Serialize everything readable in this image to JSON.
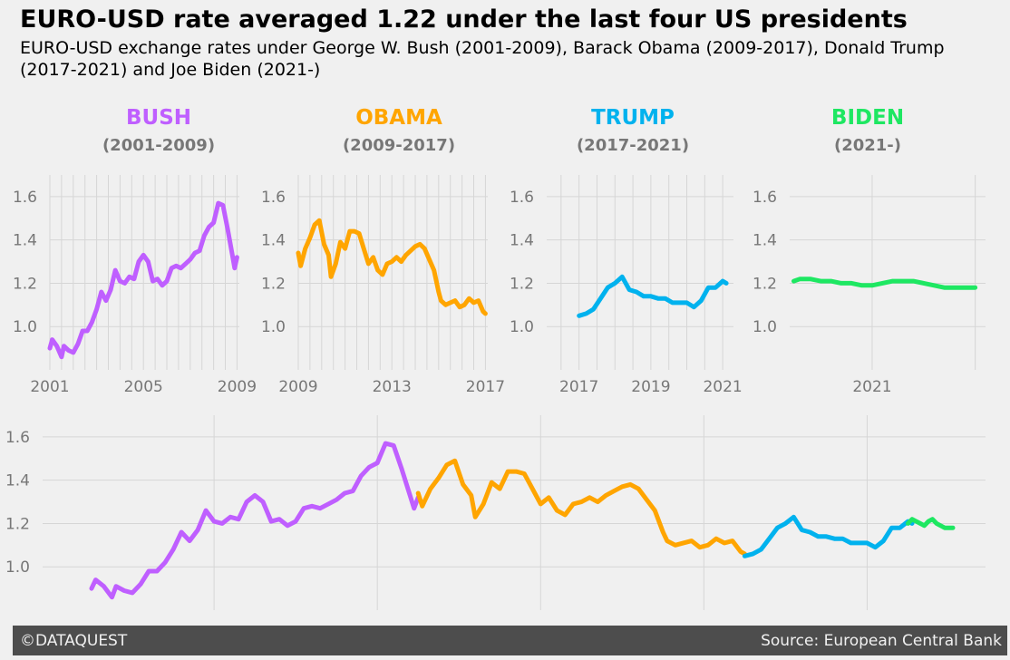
{
  "title": "EURO-USD rate averaged 1.22 under the last four US presidents",
  "subtitle": "EURO-USD exchange rates under George W. Bush (2001-2009), Barack Obama (2009-2017), Donald Trump (2017-2021) and Joe Biden (2021-)",
  "footer": {
    "left": "©DATAQUEST",
    "right": "Source: European Central Bank"
  },
  "colors": {
    "background": "#f0f0f0",
    "grid": "#d6d6d6",
    "tick_text": "#777777",
    "footer_bg": "#4d4d4d",
    "bush": "#bf5fff",
    "obama": "#ffa500",
    "trump": "#00b2ee",
    "biden": "#1ee762"
  },
  "chart_data": [
    {
      "type": "line",
      "title": "BUSH",
      "subtitle": "(2001-2009)",
      "color": "#bf5fff",
      "xlim": [
        2001,
        2009.1
      ],
      "ylim": [
        0.8,
        1.7
      ],
      "xticks": [
        2001,
        2005,
        2009
      ],
      "xtick_labels": [
        "2001",
        "2005",
        "2009"
      ],
      "yticks": [
        1.0,
        1.2,
        1.4,
        1.6
      ],
      "ytick_labels": [
        "1.0",
        "1.2",
        "1.4",
        "1.6"
      ],
      "grid": true,
      "x": [
        2001.0,
        2001.1,
        2001.3,
        2001.5,
        2001.6,
        2001.8,
        2002.0,
        2002.2,
        2002.4,
        2002.6,
        2002.8,
        2003.0,
        2003.2,
        2003.4,
        2003.6,
        2003.8,
        2004.0,
        2004.2,
        2004.4,
        2004.6,
        2004.8,
        2005.0,
        2005.2,
        2005.4,
        2005.6,
        2005.8,
        2006.0,
        2006.2,
        2006.4,
        2006.6,
        2006.8,
        2007.0,
        2007.2,
        2007.4,
        2007.6,
        2007.8,
        2008.0,
        2008.2,
        2008.4,
        2008.6,
        2008.8,
        2008.9,
        2009.0
      ],
      "y": [
        0.9,
        0.94,
        0.91,
        0.86,
        0.91,
        0.89,
        0.88,
        0.92,
        0.98,
        0.98,
        1.02,
        1.08,
        1.16,
        1.12,
        1.17,
        1.26,
        1.21,
        1.2,
        1.23,
        1.22,
        1.3,
        1.33,
        1.3,
        1.21,
        1.22,
        1.19,
        1.21,
        1.27,
        1.28,
        1.27,
        1.29,
        1.31,
        1.34,
        1.35,
        1.42,
        1.46,
        1.48,
        1.57,
        1.56,
        1.45,
        1.33,
        1.27,
        1.32
      ]
    },
    {
      "type": "line",
      "title": "OBAMA",
      "subtitle": "(2009-2017)",
      "color": "#ffa500",
      "xlim": [
        2009,
        2017.1
      ],
      "ylim": [
        0.8,
        1.7
      ],
      "xticks": [
        2009,
        2013,
        2017
      ],
      "xtick_labels": [
        "2009",
        "2013",
        "2017"
      ],
      "yticks": [
        1.0,
        1.2,
        1.4,
        1.6
      ],
      "ytick_labels": [
        "1.0",
        "1.2",
        "1.4",
        "1.6"
      ],
      "grid": true,
      "x": [
        2009.0,
        2009.1,
        2009.3,
        2009.5,
        2009.7,
        2009.9,
        2010.1,
        2010.3,
        2010.4,
        2010.6,
        2010.8,
        2011.0,
        2011.2,
        2011.4,
        2011.6,
        2011.8,
        2012.0,
        2012.2,
        2012.4,
        2012.6,
        2012.8,
        2013.0,
        2013.2,
        2013.4,
        2013.6,
        2013.8,
        2014.0,
        2014.2,
        2014.4,
        2014.6,
        2014.8,
        2015.0,
        2015.1,
        2015.3,
        2015.5,
        2015.7,
        2015.9,
        2016.1,
        2016.3,
        2016.5,
        2016.7,
        2016.9,
        2017.0
      ],
      "y": [
        1.34,
        1.28,
        1.36,
        1.41,
        1.47,
        1.49,
        1.38,
        1.33,
        1.23,
        1.29,
        1.39,
        1.36,
        1.44,
        1.44,
        1.43,
        1.36,
        1.29,
        1.32,
        1.26,
        1.24,
        1.29,
        1.3,
        1.32,
        1.3,
        1.33,
        1.35,
        1.37,
        1.38,
        1.36,
        1.31,
        1.26,
        1.16,
        1.12,
        1.1,
        1.11,
        1.12,
        1.09,
        1.1,
        1.13,
        1.11,
        1.12,
        1.07,
        1.06
      ]
    },
    {
      "type": "line",
      "title": "TRUMP",
      "subtitle": "(2017-2021)",
      "color": "#00b2ee",
      "xlim": [
        2016.1,
        2021.3
      ],
      "ylim": [
        0.8,
        1.7
      ],
      "xticks": [
        2017,
        2019,
        2021
      ],
      "xtick_labels": [
        "2017",
        "2019",
        "2021"
      ],
      "yticks": [
        1.0,
        1.2,
        1.4,
        1.6
      ],
      "ytick_labels": [
        "1.0",
        "1.2",
        "1.4",
        "1.6"
      ],
      "grid": true,
      "x": [
        2017.0,
        2017.2,
        2017.4,
        2017.6,
        2017.8,
        2018.0,
        2018.2,
        2018.4,
        2018.6,
        2018.8,
        2019.0,
        2019.2,
        2019.4,
        2019.6,
        2019.8,
        2020.0,
        2020.2,
        2020.4,
        2020.6,
        2020.8,
        2021.0,
        2021.1
      ],
      "y": [
        1.05,
        1.06,
        1.08,
        1.13,
        1.18,
        1.2,
        1.23,
        1.17,
        1.16,
        1.14,
        1.14,
        1.13,
        1.13,
        1.11,
        1.11,
        1.11,
        1.09,
        1.12,
        1.18,
        1.18,
        1.21,
        1.2
      ]
    },
    {
      "type": "line",
      "title": "BIDEN",
      "subtitle": "(2021-)",
      "color": "#1ee762",
      "xlim": [
        2020.6,
        2021.55
      ],
      "ylim": [
        0.8,
        1.7
      ],
      "xticks": [
        2021
      ],
      "xtick_labels": [
        "2021"
      ],
      "yticks": [
        1.0,
        1.2,
        1.4,
        1.6
      ],
      "ytick_labels": [
        "1.0",
        "1.2",
        "1.4",
        "1.6"
      ],
      "grid": true,
      "x": [
        2020.62,
        2020.65,
        2020.7,
        2020.75,
        2020.8,
        2020.85,
        2020.9,
        2020.95,
        2021.0,
        2021.05,
        2021.1,
        2021.15,
        2021.2,
        2021.25,
        2021.3,
        2021.35,
        2021.4,
        2021.45,
        2021.5
      ],
      "y": [
        1.21,
        1.22,
        1.22,
        1.21,
        1.21,
        1.2,
        1.2,
        1.19,
        1.19,
        1.2,
        1.21,
        1.21,
        1.21,
        1.2,
        1.19,
        1.18,
        1.18,
        1.18,
        1.18
      ]
    },
    {
      "type": "line",
      "title": "",
      "xlim": [
        1999.8,
        2022.9
      ],
      "ylim": [
        0.8,
        1.7
      ],
      "xticks": [
        2004,
        2008,
        2012,
        2016,
        2020
      ],
      "xtick_labels": [],
      "yticks": [
        1.0,
        1.2,
        1.4,
        1.6
      ],
      "ytick_labels": [
        "1.0",
        "1.2",
        "1.4",
        "1.6"
      ],
      "grid": true,
      "series": [
        {
          "color": "#bf5fff",
          "ref": 0
        },
        {
          "color": "#ffa500",
          "ref": 1
        },
        {
          "color": "#00b2ee",
          "ref": 2
        },
        {
          "color": "#1ee762",
          "x": [
            2021.0,
            2021.1,
            2021.2,
            2021.3,
            2021.4,
            2021.5,
            2021.6,
            2021.7,
            2021.8,
            2021.9,
            2022.0,
            2022.1
          ],
          "y": [
            1.2,
            1.22,
            1.21,
            1.2,
            1.19,
            1.21,
            1.22,
            1.2,
            1.19,
            1.18,
            1.18,
            1.18
          ]
        }
      ]
    }
  ]
}
